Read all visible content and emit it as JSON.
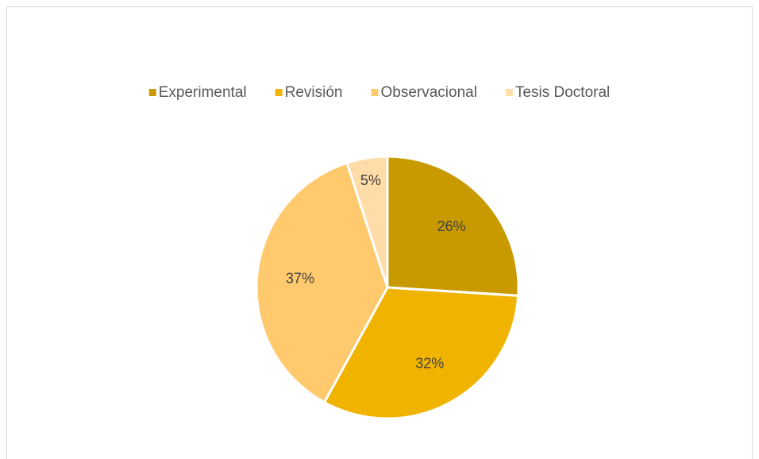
{
  "chart_data": {
    "type": "pie",
    "categories": [
      "Experimental",
      "Revisión",
      "Observacional",
      "Tesis Doctoral"
    ],
    "values": [
      26,
      32,
      37,
      5
    ],
    "value_labels": [
      "26%",
      "32%",
      "37%",
      "5%"
    ],
    "colors": [
      "#C89A00",
      "#F0B400",
      "#FFC96E",
      "#FFDCA8"
    ],
    "legend": "top"
  }
}
